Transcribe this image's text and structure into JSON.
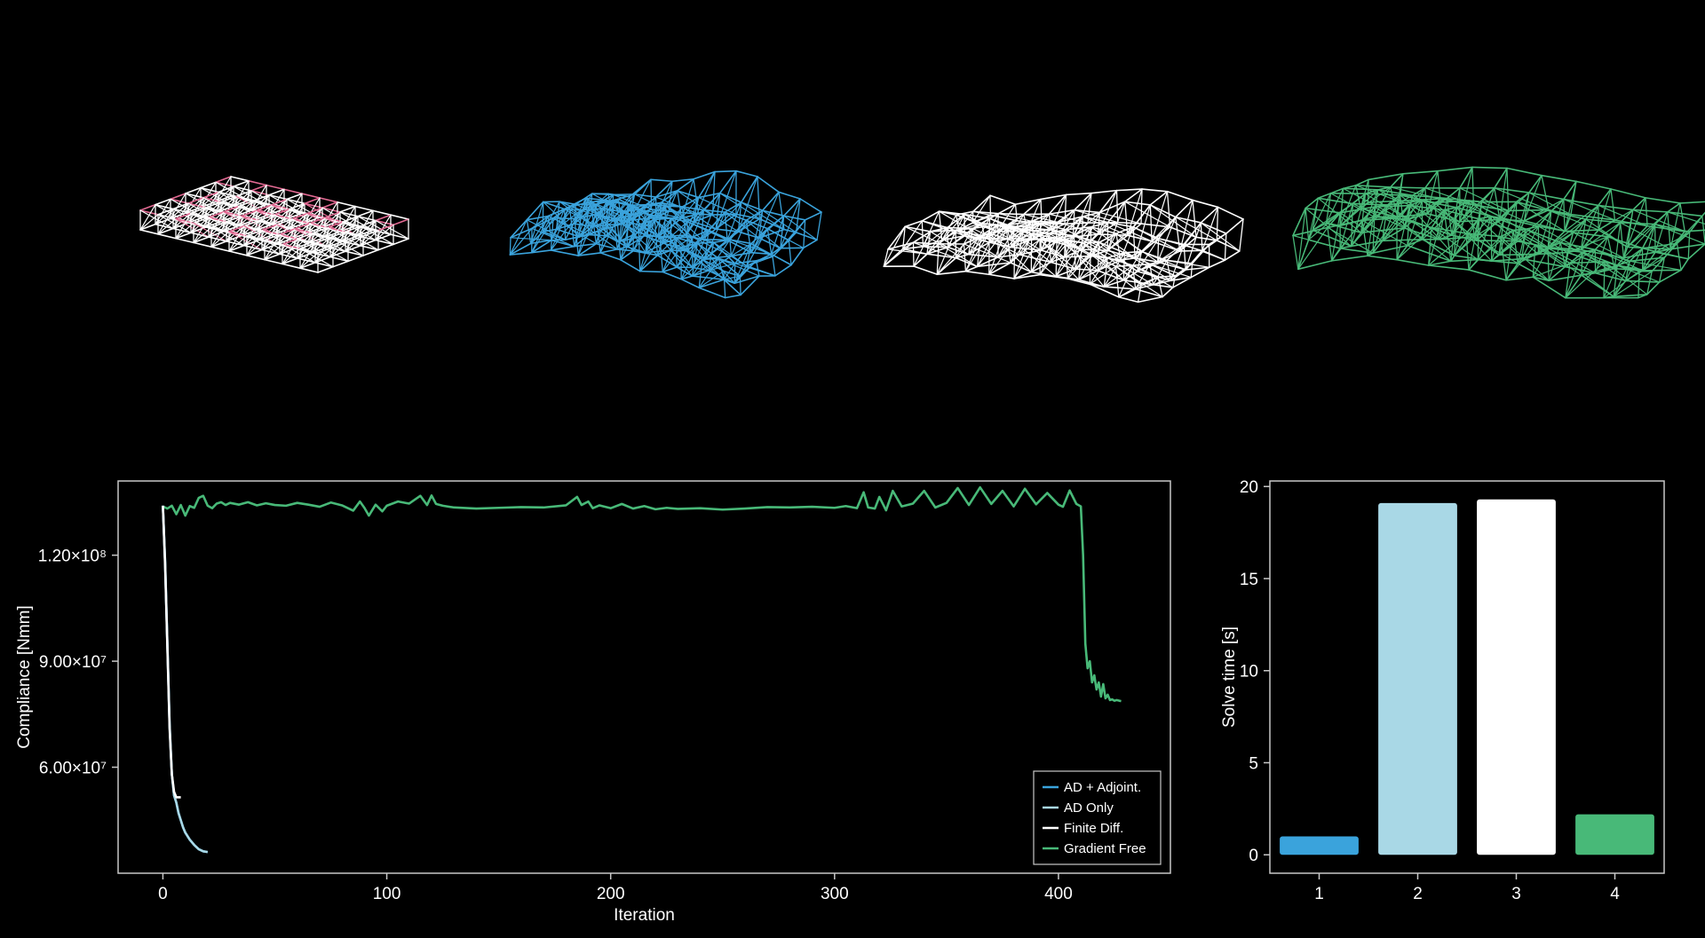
{
  "colors": {
    "background": "#000000",
    "axes": "#c8c8c8",
    "ad_adjoint": "#3aa3dc",
    "ad_only": "#a9d8e6",
    "finite_diff": "#ffffff",
    "gradient_free": "#48b978",
    "pink": "#e26a93"
  },
  "trusses": [
    {
      "icon": "initial-truss-wireframe",
      "color": "#ffffff",
      "accent": "#e26a93"
    },
    {
      "icon": "ad-adjoint-truss-wireframe",
      "color": "#3aa3dc"
    },
    {
      "icon": "finite-diff-truss-wireframe",
      "color": "#ffffff"
    },
    {
      "icon": "gradient-free-truss-wireframe",
      "color": "#48b978"
    }
  ],
  "chart_data": [
    {
      "type": "line",
      "xlabel": "Iteration",
      "ylabel": "Compliance [Nmm]",
      "xlim": [
        -20,
        450
      ],
      "ylim": [
        30000000,
        141000000
      ],
      "xticks": [
        0,
        100,
        200,
        300,
        400
      ],
      "xtick_labels": [
        "0",
        "100",
        "200",
        "300",
        "400"
      ],
      "yticks": [
        60000000,
        90000000,
        120000000
      ],
      "ytick_labels": [
        "6.00×10⁷",
        "9.00×10⁷",
        "1.20×10⁸"
      ],
      "legend_position": "bottom-right",
      "series": [
        {
          "name": "AD + Adjoint.",
          "color": "#3aa3dc",
          "x": [
            0,
            1,
            2,
            3,
            4,
            5,
            6,
            7,
            8,
            9,
            10,
            12,
            14,
            16,
            18,
            20
          ],
          "y": [
            134000000,
            118000000,
            95000000,
            72000000,
            58000000,
            52000000,
            50000000,
            47000000,
            45000000,
            43000000,
            41500000,
            39500000,
            38000000,
            36800000,
            36200000,
            36000000
          ]
        },
        {
          "name": "AD Only",
          "color": "#a9d8e6",
          "x": [
            0,
            1,
            2,
            3,
            4,
            5,
            6,
            7,
            8,
            9,
            10,
            12,
            14,
            16,
            18,
            20
          ],
          "y": [
            134000000,
            118000000,
            95000000,
            72000000,
            58000000,
            52000000,
            50000000,
            47000000,
            45000000,
            43000000,
            41500000,
            39500000,
            38000000,
            36800000,
            36200000,
            36000000
          ]
        },
        {
          "name": "Finite Diff.",
          "color": "#ffffff",
          "x": [
            0,
            1,
            2,
            3,
            4,
            5,
            6,
            7,
            8
          ],
          "y": [
            134000000,
            117000000,
            94000000,
            71000000,
            58000000,
            53000000,
            51500000,
            51500000,
            51500000
          ]
        },
        {
          "name": "Gradient Free",
          "color": "#48b978",
          "x": [
            0,
            2,
            4,
            6,
            8,
            10,
            12,
            14,
            16,
            18,
            20,
            22,
            24,
            26,
            28,
            30,
            34,
            38,
            42,
            46,
            50,
            55,
            60,
            65,
            70,
            75,
            80,
            85,
            88,
            90,
            92,
            95,
            98,
            100,
            105,
            110,
            115,
            118,
            120,
            122,
            125,
            130,
            140,
            150,
            160,
            170,
            180,
            185,
            187,
            190,
            192,
            195,
            200,
            205,
            210,
            215,
            220,
            225,
            230,
            240,
            250,
            260,
            270,
            280,
            290,
            300,
            305,
            310,
            313,
            315,
            318,
            320,
            323,
            326,
            330,
            335,
            340,
            345,
            350,
            355,
            360,
            365,
            370,
            375,
            380,
            385,
            390,
            395,
            400,
            402,
            405,
            408,
            410,
            411,
            412,
            413,
            414,
            415,
            416,
            417,
            418,
            419,
            420,
            421,
            422,
            423,
            424,
            425,
            426,
            428
          ],
          "y": [
            133800000,
            133200000,
            134000000,
            131600000,
            134200000,
            131200000,
            133900000,
            133400000,
            136200000,
            136800000,
            134000000,
            133300000,
            134600000,
            135000000,
            134200000,
            134800000,
            134300000,
            135000000,
            134100000,
            134700000,
            134200000,
            134000000,
            134800000,
            134300000,
            133700000,
            134900000,
            134100000,
            132600000,
            135200000,
            133400000,
            131200000,
            134300000,
            132400000,
            134000000,
            135200000,
            134600000,
            136800000,
            134200000,
            136900000,
            134500000,
            134000000,
            133500000,
            133200000,
            133400000,
            133600000,
            133500000,
            134100000,
            136500000,
            134200000,
            135200000,
            133300000,
            134100000,
            133300000,
            134500000,
            133200000,
            133900000,
            133000000,
            133400000,
            133100000,
            133300000,
            132900000,
            133200000,
            133600000,
            133500000,
            133700000,
            133400000,
            133900000,
            133300000,
            137800000,
            133500000,
            133200000,
            136500000,
            132700000,
            138200000,
            133800000,
            134600000,
            138200000,
            133500000,
            134800000,
            139000000,
            134200000,
            139200000,
            134500000,
            138200000,
            133800000,
            138800000,
            134400000,
            137600000,
            134300000,
            133700000,
            138300000,
            134500000,
            133800000,
            120000000,
            95000000,
            88000000,
            90000000,
            84000000,
            86000000,
            82000000,
            84000000,
            80000000,
            83500000,
            79500000,
            80500000,
            79000000,
            79200000,
            78800000,
            79000000,
            78700000
          ]
        }
      ]
    },
    {
      "type": "bar",
      "xlabel": "",
      "ylabel": "Solve time [s]",
      "categories": [
        "1",
        "2",
        "3",
        "4"
      ],
      "values": [
        1.0,
        19.1,
        19.3,
        2.2
      ],
      "colors": [
        "#3aa3dc",
        "#a9d8e6",
        "#ffffff",
        "#48b978"
      ],
      "ylim": [
        -1,
        20.3
      ],
      "yticks": [
        0,
        5,
        10,
        15,
        20
      ],
      "ytick_labels": [
        "0",
        "5",
        "10",
        "15",
        "20"
      ]
    }
  ]
}
